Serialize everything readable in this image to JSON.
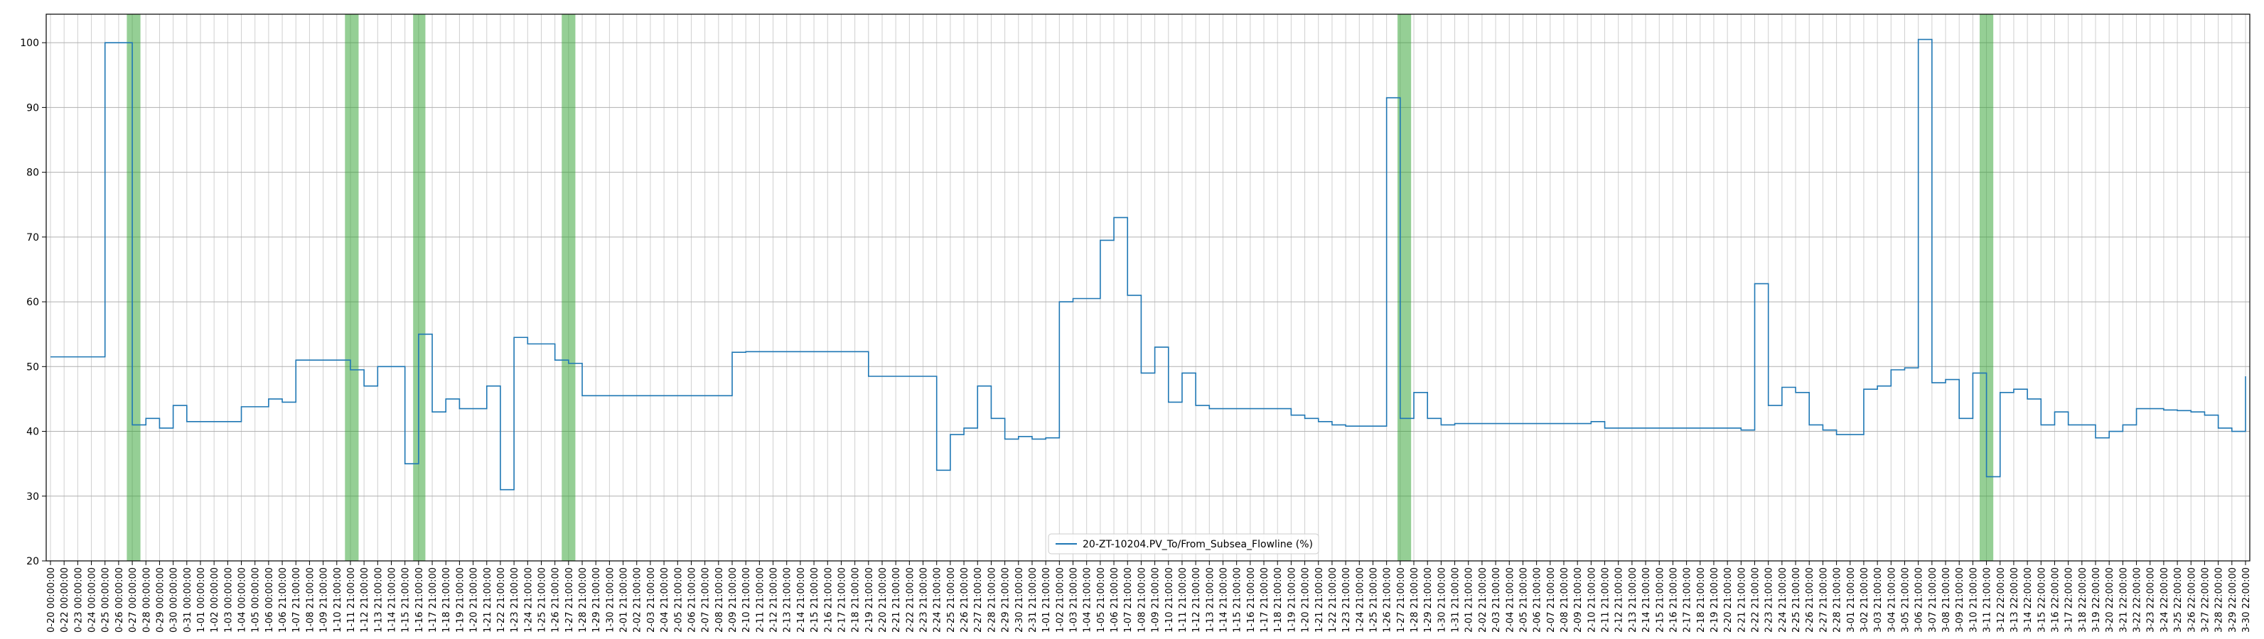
{
  "chart_data": {
    "type": "line",
    "drawstyle": "steps-post",
    "categories": [
      "0-20 00:00:00",
      "0-22 00:00:00",
      "0-23 00:00:00",
      "0-24 00:00:00",
      "0-25 00:00:00",
      "0-26 00:00:00",
      "0-27 00:00:00",
      "0-28 00:00:00",
      "0-29 00:00:00",
      "0-30 00:00:00",
      "0-31 00:00:00",
      "1-01 00:00:00",
      "1-02 00:00:00",
      "1-03 00:00:00",
      "1-04 00:00:00",
      "1-05 00:00:00",
      "1-06 00:00:00",
      "1-06 21:00:00",
      "1-07 21:00:00",
      "1-08 21:00:00",
      "1-09 21:00:00",
      "1-10 21:00:00",
      "1-11 21:00:00",
      "1-12 21:00:00",
      "1-13 21:00:00",
      "1-14 21:00:00",
      "1-15 21:00:00",
      "1-16 21:00:00",
      "1-17 21:00:00",
      "1-18 21:00:00",
      "1-19 21:00:00",
      "1-20 21:00:00",
      "1-21 21:00:00",
      "1-22 21:00:00",
      "1-23 21:00:00",
      "1-24 21:00:00",
      "1-25 21:00:00",
      "1-26 21:00:00",
      "1-27 21:00:00",
      "1-28 21:00:00",
      "1-29 21:00:00",
      "1-30 21:00:00",
      "2-01 21:00:00",
      "2-02 21:00:00",
      "2-03 21:00:00",
      "2-04 21:00:00",
      "2-05 21:00:00",
      "2-06 21:00:00",
      "2-07 21:00:00",
      "2-08 21:00:00",
      "2-09 21:00:00",
      "2-10 21:00:00",
      "2-11 21:00:00",
      "2-12 21:00:00",
      "2-13 21:00:00",
      "2-14 21:00:00",
      "2-15 21:00:00",
      "2-16 21:00:00",
      "2-17 21:00:00",
      "2-18 21:00:00",
      "2-19 21:00:00",
      "2-20 21:00:00",
      "2-21 21:00:00",
      "2-22 21:00:00",
      "2-23 21:00:00",
      "2-24 21:00:00",
      "2-25 21:00:00",
      "2-26 21:00:00",
      "2-27 21:00:00",
      "2-28 21:00:00",
      "2-29 21:00:00",
      "2-30 21:00:00",
      "2-31 21:00:00",
      "1-01 21:00:00",
      "1-02 21:00:00",
      "1-03 21:00:00",
      "1-04 21:00:00",
      "1-05 21:00:00",
      "1-06 21:00:00",
      "1-07 21:00:00",
      "1-08 21:00:00",
      "1-09 21:00:00",
      "1-10 21:00:00",
      "1-11 21:00:00",
      "1-12 21:00:00",
      "1-13 21:00:00",
      "1-14 21:00:00",
      "1-15 21:00:00",
      "1-16 21:00:00",
      "1-17 21:00:00",
      "1-18 21:00:00",
      "1-19 21:00:00",
      "1-20 21:00:00",
      "1-21 21:00:00",
      "1-22 21:00:00",
      "1-23 21:00:00",
      "1-24 21:00:00",
      "1-25 21:00:00",
      "1-26 21:00:00",
      "1-27 21:00:00",
      "1-28 21:00:00",
      "1-29 21:00:00",
      "1-30 21:00:00",
      "1-31 21:00:00",
      "2-01 21:00:00",
      "2-02 21:00:00",
      "2-03 21:00:00",
      "2-04 21:00:00",
      "2-05 21:00:00",
      "2-06 21:00:00",
      "2-07 21:00:00",
      "2-08 21:00:00",
      "2-09 21:00:00",
      "2-10 21:00:00",
      "2-11 21:00:00",
      "2-12 21:00:00",
      "2-13 21:00:00",
      "2-14 21:00:00",
      "2-15 21:00:00",
      "2-16 21:00:00",
      "2-17 21:00:00",
      "2-18 21:00:00",
      "2-19 21:00:00",
      "2-20 21:00:00",
      "2-21 21:00:00",
      "2-22 21:00:00",
      "2-23 21:00:00",
      "2-24 21:00:00",
      "2-25 21:00:00",
      "2-26 21:00:00",
      "2-27 21:00:00",
      "2-28 21:00:00",
      "3-01 21:00:00",
      "3-02 21:00:00",
      "3-03 21:00:00",
      "3-04 21:00:00",
      "3-05 21:00:00",
      "3-06 21:00:00",
      "3-07 21:00:00",
      "3-08 21:00:00",
      "3-09 21:00:00",
      "3-10 21:00:00",
      "3-11 21:00:00",
      "3-12 22:00:00",
      "3-13 22:00:00",
      "3-14 22:00:00",
      "3-15 22:00:00",
      "3-16 22:00:00",
      "3-17 22:00:00",
      "3-18 22:00:00",
      "3-19 22:00:00",
      "3-20 22:00:00",
      "3-21 22:00:00",
      "3-22 22:00:00",
      "3-23 22:00:00",
      "3-24 22:00:00",
      "3-25 22:00:00",
      "3-26 22:00:00",
      "3-27 22:00:00",
      "3-28 22:00:00",
      "3-29 22:00:00",
      "3-30 22:00:00"
    ],
    "series": [
      {
        "name": "20-ZT-10204.PV_To/From_Subsea_Flowline (%)",
        "color": "#1f77b4",
        "values": [
          51.5,
          51.5,
          51.5,
          51.5,
          100,
          100,
          41,
          42,
          40.5,
          44,
          41.5,
          41.5,
          41.5,
          41.5,
          43.8,
          43.8,
          45,
          44.5,
          51,
          51,
          51,
          51,
          49.5,
          47,
          50,
          50,
          35,
          55,
          43,
          45,
          43.5,
          43.5,
          47,
          31,
          54.5,
          53.5,
          53.5,
          51,
          50.5,
          45.5,
          45.5,
          45.5,
          45.5,
          45.5,
          45.5,
          45.5,
          45.5,
          45.5,
          45.5,
          45.5,
          52.2,
          52.3,
          52.3,
          52.3,
          52.3,
          52.3,
          52.3,
          52.3,
          52.3,
          52.3,
          48.5,
          48.5,
          48.5,
          48.5,
          48.5,
          34,
          39.5,
          40.5,
          47,
          42,
          38.8,
          39.2,
          38.8,
          39,
          60,
          60.5,
          60.5,
          69.5,
          73,
          61,
          49,
          53,
          44.5,
          49,
          44,
          43.5,
          43.5,
          43.5,
          43.5,
          43.5,
          43.5,
          42.5,
          42,
          41.5,
          41,
          40.8,
          40.8,
          40.8,
          91.5,
          42,
          46,
          42,
          41,
          41.2,
          41.2,
          41.2,
          41.2,
          41.2,
          41.2,
          41.2,
          41.2,
          41.2,
          41.2,
          41.5,
          40.5,
          40.5,
          40.5,
          40.5,
          40.5,
          40.5,
          40.5,
          40.5,
          40.5,
          40.5,
          40.2,
          62.8,
          44,
          46.8,
          46,
          41,
          40.2,
          39.5,
          39.5,
          46.5,
          47,
          49.5,
          49.8,
          100.5,
          47.5,
          48,
          42,
          49,
          33,
          46,
          46.5,
          45,
          41,
          43,
          41,
          41,
          39,
          40,
          41,
          43.5,
          43.5,
          43.3,
          43.2,
          43,
          42.5,
          40.5,
          40,
          48.5
        ]
      }
    ],
    "highlight_spans": [
      [
        5.6,
        6.6
      ],
      [
        21.6,
        22.6
      ],
      [
        26.6,
        27.5
      ],
      [
        37.5,
        38.5
      ],
      [
        98.8,
        99.8
      ],
      [
        141.5,
        142.5
      ]
    ],
    "span_color": "#2ca02c",
    "ylim": [
      20,
      104.4
    ],
    "yticks": [
      20,
      30,
      40,
      50,
      60,
      70,
      80,
      90,
      100
    ],
    "grid": true,
    "legend": "lower center"
  }
}
